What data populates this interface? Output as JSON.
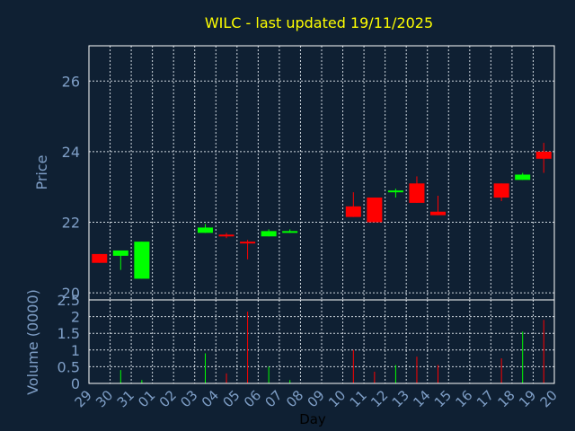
{
  "theme": {
    "background": "#0f2033",
    "title_color": "#ffff00",
    "axis_text_color": "#7f9fc7",
    "frame_color": "#ffffff",
    "grid_color": "#d0d8e0",
    "up_color": "#00ff00",
    "down_color": "#ff0000",
    "xlabel_color": "#000000"
  },
  "chart_data": {
    "type": "candlestick",
    "title": "WILC - last updated 19/11/2025",
    "xlabel": "Day",
    "x_ticks": [
      "29",
      "30",
      "31",
      "01",
      "02",
      "03",
      "04",
      "05",
      "06",
      "07",
      "08",
      "09",
      "10",
      "11",
      "12",
      "13",
      "14",
      "15",
      "16",
      "17",
      "18",
      "19",
      "20"
    ],
    "price_panel": {
      "ylabel": "Price",
      "ylim": [
        19.8,
        27
      ],
      "yticks": [
        20,
        22,
        24,
        26
      ],
      "grid": true
    },
    "volume_panel": {
      "ylabel": "Volume (0000)",
      "ylim": [
        0,
        2.5
      ],
      "yticks": [
        0,
        0.5,
        1,
        1.5,
        2,
        2.5
      ],
      "ytick_labels": [
        "0",
        "0.5",
        "1",
        "1.5",
        "2",
        "2.5"
      ],
      "grid": true
    },
    "candles": [
      {
        "day": "29",
        "open": 21.1,
        "close": 20.85,
        "high": 21.1,
        "low": 20.85,
        "volume": 0.0
      },
      {
        "day": "30",
        "open": 21.05,
        "close": 21.2,
        "high": 21.2,
        "low": 20.65,
        "volume": 0.4
      },
      {
        "day": "31",
        "open": 20.4,
        "close": 21.45,
        "high": 21.45,
        "low": 20.4,
        "volume": 0.1
      },
      {
        "day": "03",
        "open": 21.7,
        "close": 21.85,
        "high": 21.95,
        "low": 21.7,
        "volume": 0.9
      },
      {
        "day": "04",
        "open": 21.65,
        "close": 21.6,
        "high": 21.7,
        "low": 21.55,
        "volume": 0.3
      },
      {
        "day": "05",
        "open": 21.45,
        "close": 21.4,
        "high": 21.5,
        "low": 20.95,
        "volume": 2.15
      },
      {
        "day": "06",
        "open": 21.6,
        "close": 21.75,
        "high": 21.8,
        "low": 21.6,
        "volume": 0.5
      },
      {
        "day": "07",
        "open": 21.7,
        "close": 21.75,
        "high": 21.8,
        "low": 21.7,
        "volume": 0.1
      },
      {
        "day": "10",
        "open": 22.45,
        "close": 22.15,
        "high": 22.85,
        "low": 22.15,
        "volume": 1.0
      },
      {
        "day": "11",
        "open": 22.7,
        "close": 22.0,
        "high": 22.7,
        "low": 22.0,
        "volume": 0.35
      },
      {
        "day": "12",
        "open": 22.85,
        "close": 22.9,
        "high": 22.95,
        "low": 22.7,
        "volume": 0.55
      },
      {
        "day": "13",
        "open": 23.1,
        "close": 22.55,
        "high": 23.3,
        "low": 22.55,
        "volume": 0.8
      },
      {
        "day": "14",
        "open": 22.3,
        "close": 22.2,
        "high": 22.75,
        "low": 22.2,
        "volume": 0.55
      },
      {
        "day": "17",
        "open": 23.1,
        "close": 22.7,
        "high": 23.1,
        "low": 22.6,
        "volume": 0.75
      },
      {
        "day": "18",
        "open": 23.2,
        "close": 23.35,
        "high": 23.4,
        "low": 23.2,
        "volume": 1.55
      },
      {
        "day": "19",
        "open": 24.0,
        "close": 23.8,
        "high": 24.25,
        "low": 23.4,
        "volume": 1.9
      }
    ]
  }
}
